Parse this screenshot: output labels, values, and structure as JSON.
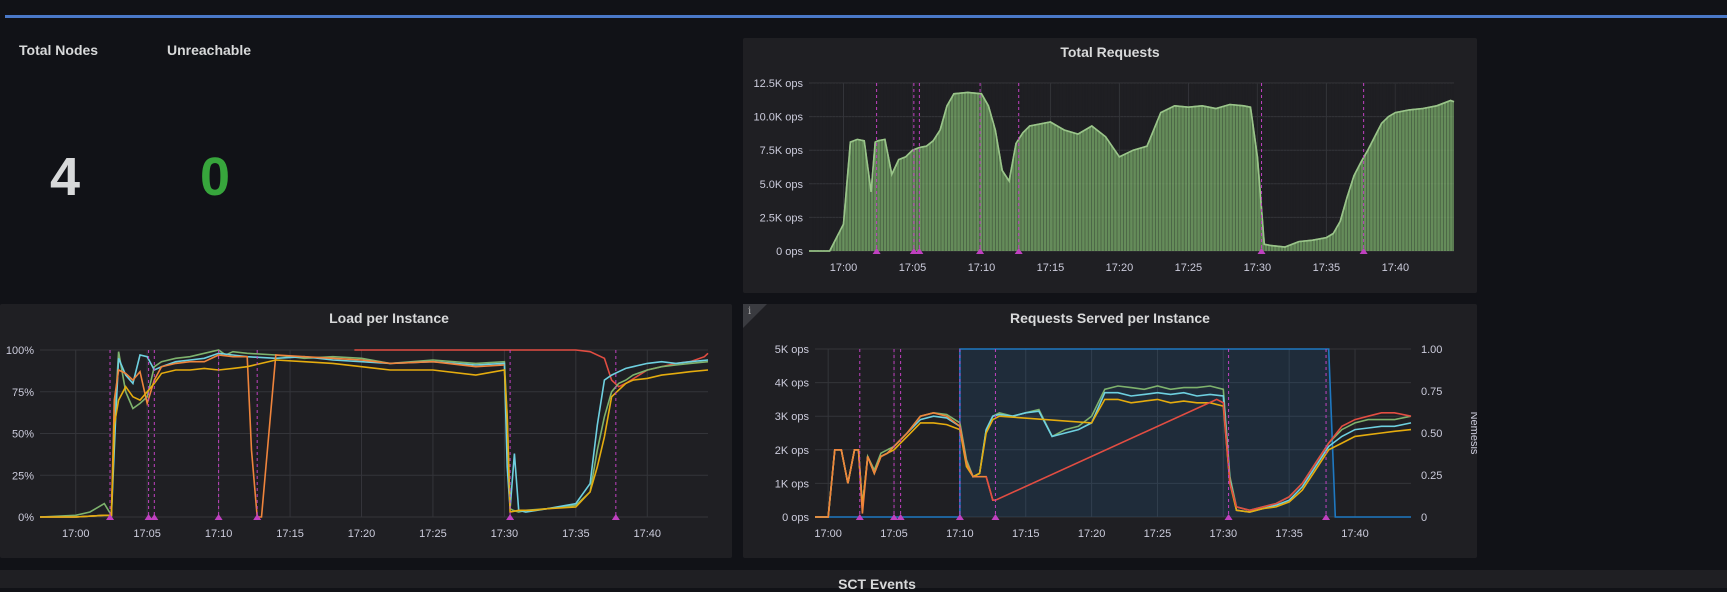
{
  "stats": {
    "total_nodes": {
      "title": "Total Nodes",
      "value": "4",
      "color": "#d8d9da"
    },
    "unreachable": {
      "title": "Unreachable",
      "value": "0",
      "color": "#37a53c"
    }
  },
  "colors": {
    "green": "#7eb26d",
    "orange": "#ef843c",
    "yellow": "#e5ac0e",
    "cyan": "#6ed0e0",
    "red": "#e24d42",
    "blue": "#1f78c1",
    "marker": "#c041c0"
  },
  "bottom_panel": {
    "title": "SCT Events"
  },
  "chart_data": [
    {
      "type": "area",
      "title": "Total Requests",
      "x_ticks": [
        "17:00",
        "17:05",
        "17:10",
        "17:15",
        "17:20",
        "17:25",
        "17:30",
        "17:35",
        "17:40"
      ],
      "y_ticks": [
        "0 ops",
        "2.5K ops",
        "5.0K ops",
        "7.5K ops",
        "10.0K ops",
        "12.5K ops"
      ],
      "ylim": [
        0,
        12500
      ],
      "xlim": [
        -2.5,
        44.25
      ],
      "grid": true,
      "annotations_min": [
        2.4,
        5.1,
        5.5,
        9.9,
        12.7,
        30.3,
        37.7
      ],
      "series": [
        {
          "x": [
            -2.5,
            -1,
            0,
            0.5,
            1,
            1.5,
            2,
            2.3,
            2.5,
            3,
            3.5,
            4,
            4.5,
            5,
            5.5,
            6,
            6.5,
            7,
            7.5,
            8,
            9,
            10,
            10.5,
            11,
            11.5,
            12,
            12.5,
            13,
            13.5,
            15,
            16,
            17,
            18,
            19,
            20,
            21,
            22,
            23,
            24,
            25,
            26,
            27,
            28,
            29,
            29.5,
            30,
            30.5,
            31,
            32,
            33,
            34,
            35,
            35.5,
            36,
            36.5,
            37,
            37.5,
            38,
            38.5,
            39,
            39.5,
            40,
            41,
            42,
            43,
            44,
            44.25
          ],
          "y": [
            0,
            0,
            2000,
            8100,
            8300,
            8200,
            4400,
            8100,
            8200,
            8300,
            5700,
            6800,
            7000,
            7500,
            7700,
            7800,
            8200,
            9000,
            10800,
            11700,
            11800,
            11700,
            10800,
            9000,
            6000,
            5200,
            8000,
            8800,
            9300,
            9600,
            9000,
            8700,
            9300,
            8500,
            7000,
            7500,
            7800,
            10300,
            10800,
            10700,
            10800,
            10600,
            10900,
            10800,
            10700,
            7000,
            500,
            400,
            300,
            700,
            800,
            1000,
            1300,
            2200,
            4000,
            5600,
            6600,
            7500,
            8500,
            9500,
            10000,
            10300,
            10500,
            10600,
            10800,
            11200,
            11100
          ]
        }
      ]
    },
    {
      "type": "line",
      "title": "Load per Instance",
      "x_ticks": [
        "17:00",
        "17:05",
        "17:10",
        "17:15",
        "17:20",
        "17:25",
        "17:30",
        "17:35",
        "17:40"
      ],
      "y_ticks": [
        "0%",
        "25%",
        "50%",
        "75%",
        "100%"
      ],
      "ylim": [
        0,
        100
      ],
      "xlim": [
        -2.5,
        44.25
      ],
      "grid": true,
      "annotations_min": [
        2.4,
        5.1,
        5.5,
        10,
        12.7,
        30.4,
        37.8
      ],
      "series": [
        {
          "name": "red",
          "x": [
            19.5,
            25,
            30,
            35,
            36,
            37,
            37.5,
            38,
            38.5,
            40,
            42,
            43,
            44,
            44.25
          ],
          "y": [
            100,
            100,
            100,
            100,
            99,
            95,
            82,
            78,
            80,
            88,
            92,
            93,
            96,
            98
          ]
        },
        {
          "name": "green",
          "x": [
            -2.5,
            0,
            1,
            2,
            2.5,
            2.7,
            3,
            3.5,
            4,
            4.5,
            5,
            5.5,
            6,
            7,
            8,
            9,
            10,
            10.5,
            11,
            12,
            14,
            16,
            18,
            20,
            22,
            25,
            28,
            30,
            30.2,
            30.4,
            30.6,
            31,
            31.5,
            33,
            35,
            36,
            36.5,
            37,
            37.5,
            38,
            38.5,
            39,
            40,
            41,
            42,
            43,
            44.25
          ],
          "y": [
            0,
            1,
            3,
            8,
            1,
            55,
            99,
            75,
            65,
            68,
            72,
            90,
            93,
            95,
            96,
            98,
            100,
            97,
            99,
            98,
            97,
            95,
            96,
            95,
            92,
            94,
            92,
            93,
            60,
            5,
            4,
            3,
            4,
            5,
            7,
            15,
            40,
            60,
            75,
            80,
            82,
            85,
            88,
            90,
            91,
            92,
            93
          ]
        },
        {
          "name": "cyan",
          "x": [
            -2.5,
            0,
            2,
            2.5,
            2.8,
            3,
            3.5,
            4,
            4.5,
            5,
            5.5,
            6,
            7,
            8,
            9,
            10,
            11,
            12,
            14,
            16,
            18,
            20,
            22,
            25,
            28,
            30,
            30.2,
            30.4,
            30.7,
            31,
            31.5,
            33,
            35,
            36,
            36.5,
            37,
            37.5,
            38,
            38.5,
            39,
            40,
            41,
            42,
            43,
            44.25
          ],
          "y": [
            0,
            0,
            1,
            1,
            60,
            95,
            85,
            80,
            97,
            96,
            88,
            90,
            93,
            94,
            95,
            98,
            97,
            96,
            95,
            96,
            94,
            93,
            92,
            93,
            91,
            92,
            30,
            5,
            38,
            4,
            3,
            5,
            8,
            20,
            55,
            82,
            85,
            87,
            89,
            90,
            92,
            93,
            92,
            93,
            94
          ]
        },
        {
          "name": "orange",
          "x": [
            -2.5,
            0,
            2,
            2.5,
            2.7,
            3,
            3.5,
            4,
            4.5,
            5,
            5.5,
            6,
            7,
            8,
            9,
            10,
            11,
            12,
            12.3,
            12.7,
            13,
            14,
            16,
            18,
            20,
            22,
            25,
            28,
            30
          ],
          "y": [
            0,
            0,
            1,
            1,
            70,
            88,
            86,
            82,
            87,
            68,
            82,
            90,
            92,
            93,
            93,
            97,
            96,
            96,
            40,
            0,
            0,
            97,
            96,
            95,
            94,
            92,
            93,
            90,
            91
          ]
        },
        {
          "name": "yellow",
          "x": [
            -2.5,
            0,
            2,
            2.5,
            2.7,
            3,
            3.5,
            4,
            4.5,
            5,
            5.5,
            6,
            7,
            8,
            9,
            10,
            11,
            12,
            14,
            16,
            18,
            20,
            22,
            25,
            28,
            30,
            30.2,
            30.4,
            31,
            32,
            33,
            35,
            36,
            36.5,
            37,
            37.5,
            38,
            38.5,
            39,
            40,
            41,
            42,
            43,
            44.25
          ],
          "y": [
            0,
            0,
            1,
            1,
            55,
            70,
            78,
            72,
            70,
            75,
            80,
            86,
            88,
            88,
            89,
            88,
            89,
            90,
            94,
            93,
            92,
            90,
            88,
            88,
            85,
            88,
            60,
            3,
            4,
            4,
            5,
            6,
            15,
            30,
            48,
            72,
            76,
            80,
            82,
            83,
            85,
            86,
            87,
            88
          ]
        }
      ]
    },
    {
      "type": "line",
      "title": "Requests Served per Instance",
      "x_ticks": [
        "17:00",
        "17:05",
        "17:10",
        "17:15",
        "17:20",
        "17:25",
        "17:30",
        "17:35",
        "17:40"
      ],
      "y_ticks": [
        "0 ops",
        "1K ops",
        "2K ops",
        "3K ops",
        "4K ops",
        "5K ops"
      ],
      "y2_ticks": [
        "0",
        "0.25",
        "0.50",
        "0.75",
        "1.00"
      ],
      "y2_label": "Nemesis",
      "ylim": [
        0,
        5000
      ],
      "y2lim": [
        0,
        1
      ],
      "xlim": [
        -1,
        44.25
      ],
      "grid": true,
      "annotations_min": [
        2.4,
        5,
        5.5,
        10,
        12.7,
        30.4,
        37.8
      ],
      "series": [
        {
          "name": "nemesis",
          "axis": "right",
          "x": [
            -1,
            10,
            10,
            38,
            38.5,
            44.25
          ],
          "y": [
            0,
            0,
            1,
            1,
            0,
            0
          ]
        },
        {
          "name": "green",
          "x": [
            -1,
            0,
            0.5,
            1,
            1.5,
            2,
            2.3,
            2.6,
            3,
            3.5,
            4,
            4.5,
            5,
            5.5,
            6,
            7,
            8,
            9,
            10,
            10.5,
            11,
            11.5,
            12,
            12.5,
            13,
            14,
            15,
            16,
            17,
            18,
            19,
            20,
            21,
            22,
            23,
            24,
            25,
            26,
            27,
            28,
            29,
            30,
            30.5,
            31,
            32,
            33,
            34,
            35,
            36,
            37,
            38,
            39,
            40,
            41,
            42,
            43,
            44.25
          ],
          "y": [
            0,
            0,
            2000,
            2000,
            1000,
            2000,
            2000,
            300,
            1800,
            1400,
            1900,
            2000,
            2100,
            2300,
            2500,
            3000,
            3100,
            3050,
            2800,
            1700,
            1200,
            1300,
            2600,
            3000,
            3100,
            3000,
            3100,
            3200,
            2400,
            2600,
            2700,
            3000,
            3800,
            3900,
            3850,
            3800,
            3900,
            3800,
            3850,
            3850,
            3900,
            3800,
            1200,
            300,
            200,
            300,
            400,
            600,
            1000,
            1600,
            2200,
            2600,
            2800,
            2900,
            2900,
            2900,
            3000
          ]
        },
        {
          "name": "cyan",
          "x": [
            -1,
            0,
            0.5,
            1,
            1.5,
            2,
            2.3,
            2.6,
            3,
            3.5,
            4,
            4.5,
            5,
            5.5,
            6,
            7,
            8,
            9,
            10,
            10.5,
            11,
            11.5,
            12,
            12.5,
            13,
            14,
            15,
            16,
            17,
            18,
            19,
            20,
            21,
            22,
            23,
            24,
            25,
            26,
            27,
            28,
            29,
            30,
            30.5,
            31,
            32,
            33,
            34,
            35,
            36,
            37,
            38,
            39,
            40,
            41,
            42,
            43,
            44.25
          ],
          "y": [
            0,
            0,
            2000,
            2000,
            1000,
            2000,
            2000,
            300,
            1800,
            1300,
            1800,
            1900,
            2100,
            2300,
            2500,
            2900,
            3000,
            2950,
            2700,
            1600,
            1200,
            1300,
            2600,
            3000,
            3050,
            3000,
            3100,
            3150,
            2400,
            2500,
            2600,
            2800,
            3700,
            3700,
            3600,
            3650,
            3700,
            3650,
            3700,
            3600,
            3650,
            3600,
            1100,
            200,
            150,
            250,
            350,
            500,
            900,
            1500,
            2100,
            2400,
            2600,
            2650,
            2700,
            2700,
            2800
          ]
        },
        {
          "name": "yellow",
          "x": [
            -1,
            0,
            0.5,
            1,
            1.5,
            2,
            2.3,
            2.6,
            3,
            3.5,
            4,
            4.5,
            5,
            5.5,
            6,
            7,
            8,
            9,
            10,
            10.5,
            11,
            11.5,
            12,
            12.5,
            13,
            20,
            21,
            22,
            23,
            24,
            25,
            26,
            27,
            28,
            29,
            30,
            30.5,
            31,
            32,
            33,
            34,
            35,
            36,
            37,
            38,
            39,
            40,
            41,
            42,
            43,
            44.25
          ],
          "y": [
            0,
            0,
            2000,
            2000,
            1000,
            2000,
            2000,
            300,
            1800,
            1300,
            1800,
            1900,
            2000,
            2200,
            2400,
            2800,
            2800,
            2750,
            2600,
            1500,
            1200,
            1300,
            2500,
            2900,
            3000,
            2800,
            3500,
            3500,
            3400,
            3450,
            3500,
            3400,
            3450,
            3400,
            3400,
            3300,
            1000,
            200,
            150,
            250,
            300,
            450,
            800,
            1400,
            2000,
            2200,
            2400,
            2450,
            2500,
            2550,
            2600
          ]
        },
        {
          "name": "orange",
          "x": [
            -1,
            0,
            0.5,
            1,
            1.5,
            2,
            2.3,
            2.6,
            3,
            3.5,
            4,
            4.5,
            5,
            5.5,
            6,
            7,
            8,
            9,
            10,
            10.5,
            11,
            11.5,
            12,
            12.5,
            12.7
          ],
          "y": [
            0,
            0,
            2000,
            2000,
            1000,
            2000,
            2000,
            100,
            1800,
            1300,
            1800,
            1900,
            2100,
            2300,
            2500,
            3000,
            3100,
            3000,
            2700,
            1600,
            1200,
            1200,
            1200,
            500,
            500
          ]
        },
        {
          "name": "red",
          "x": [
            12,
            12.5,
            12.7,
            29.5,
            30,
            30.5,
            31,
            32,
            33,
            34,
            35,
            36,
            37,
            38,
            39,
            40,
            41,
            42,
            43,
            44.25
          ],
          "y": [
            1200,
            500,
            500,
            3500,
            3400,
            1000,
            300,
            200,
            300,
            400,
            600,
            1000,
            1600,
            2200,
            2700,
            2900,
            3000,
            3100,
            3100,
            3000
          ]
        }
      ]
    }
  ]
}
